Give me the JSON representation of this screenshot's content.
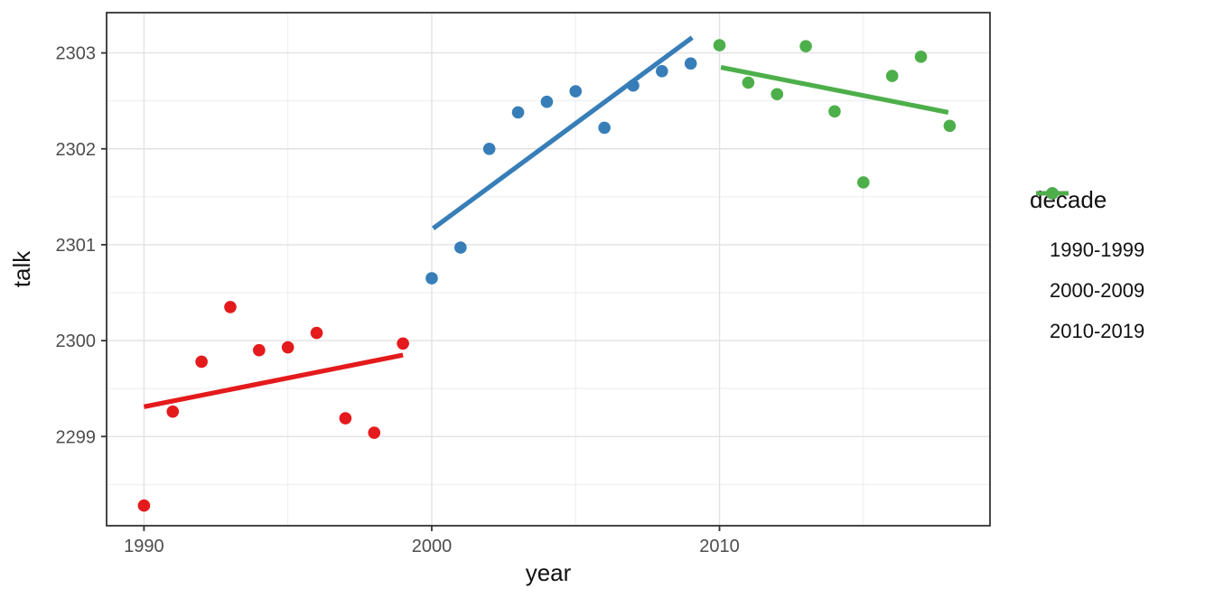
{
  "chart_data": {
    "type": "scatter",
    "title": "",
    "xlabel": "year",
    "ylabel": "talk",
    "legend_title": "decade",
    "legend_position": "right",
    "grid": true,
    "xlim": [
      1988.7,
      2019.4
    ],
    "ylim": [
      2298.07,
      2303.42
    ],
    "x_ticks": [
      1990,
      2000,
      2010
    ],
    "x_minor_ticks": [
      1995,
      2005,
      2015
    ],
    "y_ticks": [
      2299,
      2300,
      2301,
      2302,
      2303
    ],
    "y_minor_ticks": [
      2298.5,
      2299.5,
      2300.5,
      2301.5,
      2302.5
    ],
    "series": [
      {
        "name": "1990-1999",
        "color": "#e41a1c",
        "x": [
          1990,
          1991,
          1992,
          1993,
          1994,
          1995,
          1996,
          1997,
          1998,
          1999
        ],
        "y": [
          2298.28,
          2299.26,
          2299.78,
          2300.35,
          2299.9,
          2299.93,
          2300.08,
          2299.19,
          2299.04,
          2299.97
        ],
        "trend": {
          "x": [
            1990.0,
            1999.0
          ],
          "y": [
            2299.31,
            2299.85
          ]
        }
      },
      {
        "name": "2000-2009",
        "color": "#377eb8",
        "x": [
          2000,
          2001,
          2002,
          2003,
          2004,
          2005,
          2006,
          2007,
          2008,
          2009
        ],
        "y": [
          2300.65,
          2300.97,
          2302.0,
          2302.38,
          2302.49,
          2302.6,
          2302.22,
          2302.66,
          2302.81,
          2302.89
        ],
        "trend": {
          "x": [
            2000.05,
            2009.05
          ],
          "y": [
            2301.17,
            2303.16
          ]
        }
      },
      {
        "name": "2010-2019",
        "color": "#4daf4a",
        "x": [
          2010,
          2011,
          2012,
          2013,
          2014,
          2015,
          2016,
          2017,
          2018
        ],
        "y": [
          2303.08,
          2302.69,
          2302.57,
          2303.07,
          2302.39,
          2301.65,
          2302.76,
          2302.96,
          2302.24
        ],
        "trend": {
          "x": [
            2010.05,
            2017.95
          ],
          "y": [
            2302.85,
            2302.38
          ]
        }
      }
    ]
  }
}
